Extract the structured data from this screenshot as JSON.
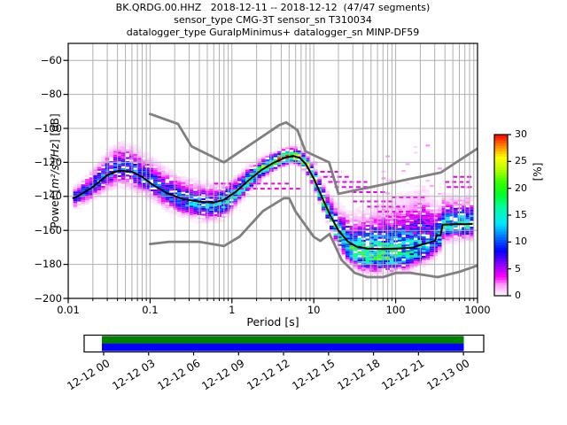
{
  "title": {
    "line1": "BK.QRDG.00.HHZ   2018-12-11 -- 2018-12-12  (47/47 segments)",
    "line2": "sensor_type CMG-3T sensor_sn T310034",
    "line3": "datalogger_type GuralpMinimus+ datalogger_sn MINP-DF59"
  },
  "axes": {
    "xlabel": "Period [s]",
    "ylabel_prefix": "Power [",
    "ylabel_math": "m²/s⁴/Hz",
    "ylabel_suffix": "] [dB]",
    "x_ticks": [
      {
        "v": 0.01,
        "label": "0.01"
      },
      {
        "v": 0.1,
        "label": "0.1"
      },
      {
        "v": 1,
        "label": "1"
      },
      {
        "v": 10,
        "label": "10"
      },
      {
        "v": 100,
        "label": "100"
      },
      {
        "v": 1000,
        "label": "1000"
      }
    ],
    "y_ticks": [
      {
        "v": -60,
        "label": "−60"
      },
      {
        "v": -80,
        "label": "−80"
      },
      {
        "v": -100,
        "label": "−100"
      },
      {
        "v": -120,
        "label": "−120"
      },
      {
        "v": -140,
        "label": "−140"
      },
      {
        "v": -160,
        "label": "−160"
      },
      {
        "v": -180,
        "label": "−180"
      },
      {
        "v": -200,
        "label": "−200"
      }
    ]
  },
  "colorbar": {
    "label": "[%]",
    "ticks": [
      {
        "v": 0,
        "label": "0"
      },
      {
        "v": 5,
        "label": "5"
      },
      {
        "v": 10,
        "label": "10"
      },
      {
        "v": 15,
        "label": "15"
      },
      {
        "v": 20,
        "label": "20"
      },
      {
        "v": 25,
        "label": "25"
      },
      {
        "v": 30,
        "label": "30"
      }
    ],
    "max": 30
  },
  "timeline": {
    "labels": [
      "12-12 00",
      "12-12 03",
      "12-12 06",
      "12-12 09",
      "12-12 12",
      "12-12 15",
      "12-12 18",
      "12-12 21",
      "12-13 00"
    ],
    "coverage_color": "#008000",
    "extent_color": "#0000ff"
  },
  "colors": {
    "grid": "#b0b0b0",
    "noise_model": "#808080",
    "mode_line": "#000000",
    "spine": "#000000"
  },
  "chart_data": {
    "type": "heatmap",
    "description": "ObsPy PPSD probabilistic power spectral density plot",
    "x_axis": {
      "label": "Period [s]",
      "scale": "log",
      "range": [
        0.01,
        1000
      ]
    },
    "y_axis": {
      "label": "Power [m²/s⁴/Hz] [dB]",
      "range": [
        -200,
        -50
      ]
    },
    "db_range": [
      -200,
      -50
    ],
    "probability_range_percent": [
      0,
      30
    ],
    "legend_position": "right-colorbar",
    "grid": true,
    "colormap_stops": [
      [
        0.0,
        "#ffffff"
      ],
      [
        0.07,
        "#ff9dff"
      ],
      [
        0.12,
        "#ff00ff"
      ],
      [
        0.2,
        "#8800ff"
      ],
      [
        0.28,
        "#0000ff"
      ],
      [
        0.37,
        "#0077ff"
      ],
      [
        0.45,
        "#00e8ff"
      ],
      [
        0.55,
        "#00ffa0"
      ],
      [
        0.63,
        "#00ff28"
      ],
      [
        0.7,
        "#30ff00"
      ],
      [
        0.8,
        "#c8ff00"
      ],
      [
        0.86,
        "#ffff00"
      ],
      [
        0.93,
        "#ff8800"
      ],
      [
        1.0,
        "#ff0000"
      ]
    ],
    "mode_curve": [
      [
        0.0115,
        -141
      ],
      [
        0.013,
        -140
      ],
      [
        0.02,
        -134.5
      ],
      [
        0.03,
        -127.5
      ],
      [
        0.042,
        -124.8
      ],
      [
        0.06,
        -125.5
      ],
      [
        0.08,
        -128.5
      ],
      [
        0.11,
        -133.5
      ],
      [
        0.16,
        -138
      ],
      [
        0.25,
        -141.5
      ],
      [
        0.4,
        -143.2
      ],
      [
        0.6,
        -143.6
      ],
      [
        0.8,
        -142
      ],
      [
        1.1,
        -137.5
      ],
      [
        1.6,
        -130.5
      ],
      [
        2.3,
        -124.5
      ],
      [
        3.2,
        -120.3
      ],
      [
        4.5,
        -117.2
      ],
      [
        5.6,
        -116.2
      ],
      [
        6.8,
        -117.5
      ],
      [
        8,
        -121
      ],
      [
        10,
        -129.5
      ],
      [
        13,
        -142
      ],
      [
        16,
        -151.5
      ],
      [
        20,
        -160
      ],
      [
        26,
        -166.5
      ],
      [
        33,
        -169.5
      ],
      [
        45,
        -170.8
      ],
      [
        70,
        -171
      ],
      [
        110,
        -170.6
      ],
      [
        160,
        -170.2
      ],
      [
        210,
        -168.3
      ],
      [
        270,
        -166.8
      ],
      [
        300,
        -166.3
      ],
      [
        320,
        -162.8
      ],
      [
        355,
        -162.8
      ],
      [
        375,
        -156.6
      ],
      [
        550,
        -156.3
      ],
      [
        700,
        -156.4
      ],
      [
        850,
        -156.2
      ]
    ],
    "nhnm": [
      [
        0.1,
        -91.5
      ],
      [
        0.22,
        -97.4
      ],
      [
        0.32,
        -110.5
      ],
      [
        0.8,
        -120
      ],
      [
        3.8,
        -98
      ],
      [
        4.6,
        -96.5
      ],
      [
        6.3,
        -101
      ],
      [
        7.9,
        -113.5
      ],
      [
        15.4,
        -120
      ],
      [
        20,
        -138.5
      ],
      [
        354.8,
        -126
      ],
      [
        1000,
        -111.8
      ]
    ],
    "nlnm": [
      [
        0.1,
        -168
      ],
      [
        0.17,
        -166.7
      ],
      [
        0.4,
        -166.7
      ],
      [
        0.8,
        -169.2
      ],
      [
        1.24,
        -163.7
      ],
      [
        2.4,
        -148.6
      ],
      [
        4.3,
        -141.1
      ],
      [
        5,
        -141.1
      ],
      [
        6,
        -149
      ],
      [
        10,
        -163.8
      ],
      [
        12,
        -166.2
      ],
      [
        15.6,
        -162.1
      ],
      [
        21.9,
        -177.5
      ],
      [
        31.6,
        -185
      ],
      [
        45,
        -187.5
      ],
      [
        70,
        -187.5
      ],
      [
        101,
        -185
      ],
      [
        154,
        -185
      ],
      [
        328,
        -187.5
      ],
      [
        600,
        -184.4
      ],
      [
        1000,
        -180.7
      ]
    ],
    "distribution": [
      [
        0.013,
        6,
        6,
        0.28,
        0
      ],
      [
        0.02,
        9,
        7,
        0.3,
        0
      ],
      [
        0.04,
        13,
        9,
        0.33,
        1
      ],
      [
        0.07,
        13,
        9,
        0.3,
        0
      ],
      [
        0.12,
        13,
        8,
        0.3,
        0
      ],
      [
        0.25,
        12,
        8,
        0.33,
        -1
      ],
      [
        0.5,
        11,
        8,
        0.38,
        -2
      ],
      [
        0.8,
        10,
        8,
        0.4,
        -2
      ],
      [
        1.3,
        8,
        6,
        0.5,
        -1
      ],
      [
        2.2,
        6,
        5,
        0.65,
        0
      ],
      [
        3.5,
        5,
        4,
        0.8,
        0
      ],
      [
        5.6,
        4.5,
        3.5,
        0.95,
        0
      ],
      [
        7.5,
        5,
        4,
        0.85,
        0
      ],
      [
        10,
        6,
        5,
        0.7,
        0
      ],
      [
        14,
        9,
        5,
        0.6,
        -1
      ],
      [
        19,
        13,
        6,
        0.55,
        -3
      ],
      [
        26,
        17,
        7,
        0.5,
        -4
      ],
      [
        40,
        21,
        8,
        0.55,
        -5
      ],
      [
        65,
        24,
        8,
        0.55,
        -5
      ],
      [
        100,
        26,
        8,
        0.5,
        -5
      ],
      [
        150,
        28,
        8,
        0.45,
        -4
      ],
      [
        220,
        30,
        8,
        0.4,
        -3
      ],
      [
        300,
        20,
        8,
        0.33,
        -2
      ],
      [
        420,
        14,
        8,
        0.45,
        -1
      ],
      [
        600,
        13,
        8,
        0.5,
        0
      ],
      [
        900,
        12,
        8,
        0.45,
        0
      ]
    ],
    "outlier_streaks": [
      [
        0.6,
        5,
        -132.5
      ],
      [
        1.0,
        7,
        -135.5
      ],
      [
        12,
        22,
        -125.5
      ],
      [
        13,
        28,
        -128.5
      ],
      [
        15,
        45,
        -131.5
      ],
      [
        18,
        60,
        -134.5
      ],
      [
        24,
        80,
        -137.5
      ],
      [
        90,
        230,
        -140.5
      ],
      [
        30,
        95,
        -143
      ],
      [
        45,
        130,
        -146
      ],
      [
        60,
        200,
        -149
      ],
      [
        80,
        260,
        -152
      ],
      [
        100,
        300,
        -155
      ],
      [
        130,
        300,
        -158.5
      ],
      [
        160,
        260,
        -161.5
      ],
      [
        400,
        800,
        -131.5
      ],
      [
        420,
        850,
        -134.5
      ],
      [
        500,
        850,
        -128.5
      ]
    ],
    "histogram_period_range": [
      0.0115,
      900
    ]
  }
}
